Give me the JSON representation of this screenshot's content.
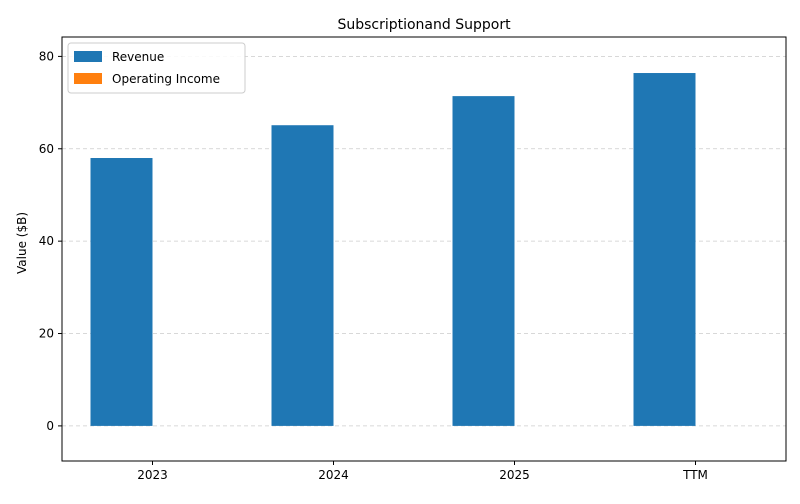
{
  "chart_data": {
    "type": "bar",
    "title": "Subscriptionand Support",
    "xlabel": "",
    "ylabel": "Value ($B)",
    "categories": [
      "2023",
      "2024",
      "2025",
      "TTM"
    ],
    "series": [
      {
        "name": "Revenue",
        "values": [
          58.0,
          65.1,
          71.4,
          76.4
        ],
        "color": "#1f77b4"
      },
      {
        "name": "Operating Income",
        "values": [
          0,
          0,
          0,
          0
        ],
        "color": "#ff7f0e"
      }
    ],
    "ylim": [
      -7.6,
      84.2
    ],
    "yticks": [
      0,
      20,
      40,
      60,
      80
    ],
    "grid": "y-dashed",
    "legend_position": "top-left"
  }
}
